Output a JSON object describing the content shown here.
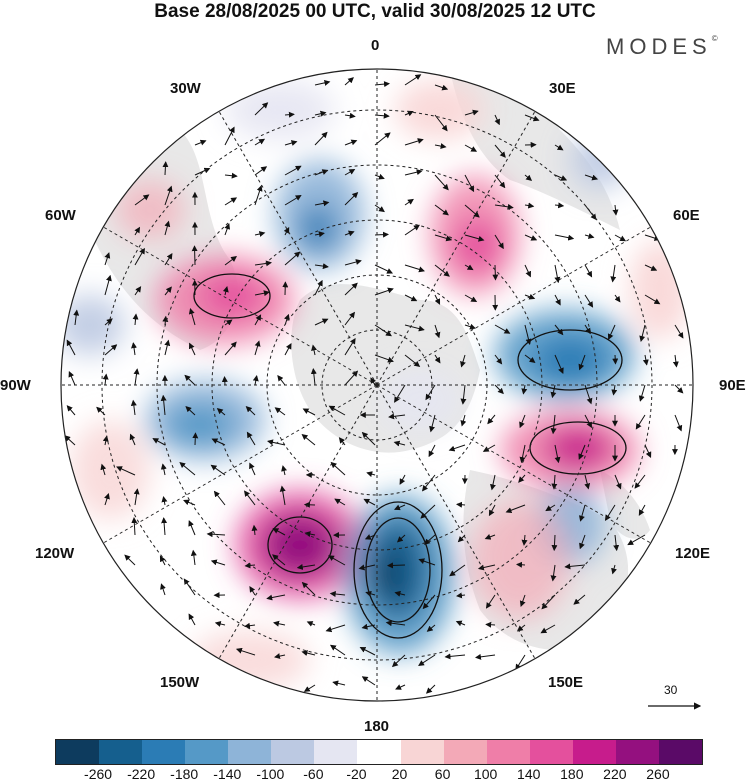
{
  "title": "Base 28/08/2025 00 UTC, valid 30/08/2025 12 UTC",
  "brand": {
    "name": "MODES",
    "mark": "©"
  },
  "longitude_labels": {
    "top": "0",
    "top_right": "30E",
    "right_upper": "60E",
    "right": "90E",
    "right_lower": "120E",
    "bottom_right": "150E",
    "bottom": "180",
    "bottom_left": "150W",
    "left_lower": "120W",
    "left": "90W",
    "left_upper": "60W",
    "top_left": "30W"
  },
  "wind_scale": {
    "value": "30"
  },
  "colorbar": {
    "colors": [
      "#0d3b5e",
      "#155f8e",
      "#2b7cb5",
      "#5599c7",
      "#8eb4d8",
      "#bcc9e2",
      "#e5e6f2",
      "#ffffff",
      "#f8d5d5",
      "#f3a9b7",
      "#ef7ea8",
      "#e4509d",
      "#c71c8c",
      "#94107f",
      "#5a0a67"
    ],
    "tick_labels": [
      "-260",
      "-220",
      "-180",
      "-140",
      "-100",
      "-60",
      "-20",
      "20",
      "60",
      "100",
      "140",
      "180",
      "220",
      "260"
    ]
  }
}
